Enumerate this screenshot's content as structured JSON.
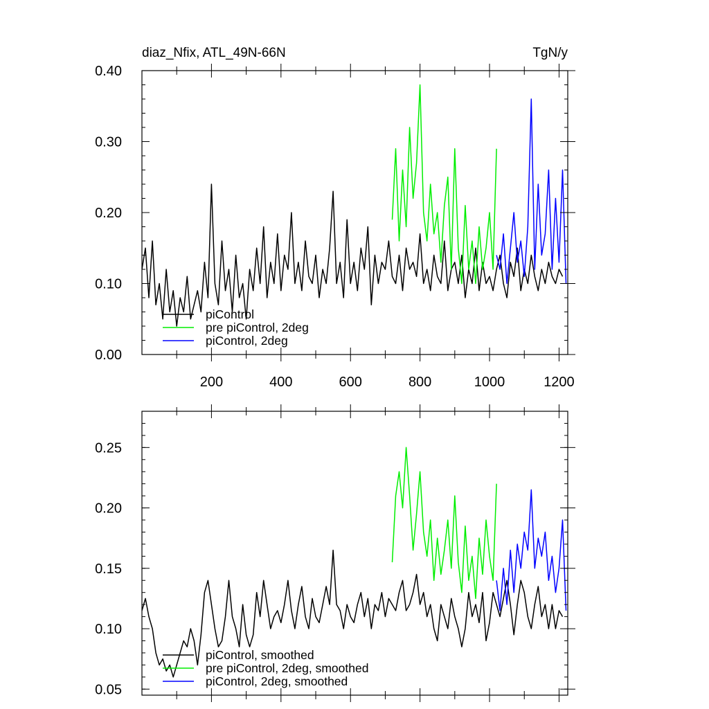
{
  "chart_data": [
    {
      "type": "line",
      "title_left": "diaz_Nfix, ATL_49N-66N",
      "title_right": "TgN/y",
      "xlim": [
        0,
        1225
      ],
      "ylim": [
        0,
        0.4
      ],
      "x_ticks": [
        200,
        400,
        600,
        800,
        1000,
        1200
      ],
      "x_tick_labels": [
        "200",
        "400",
        "600",
        "800",
        "1000",
        "1200"
      ],
      "y_ticks": [
        0,
        0.1,
        0.2,
        0.3,
        0.4
      ],
      "y_tick_labels": [
        "0.00",
        "0.10",
        "0.20",
        "0.30",
        "0.40"
      ],
      "legend_position": "bottom-left",
      "series": [
        {
          "name": "piControl",
          "color": "#000000",
          "x": [
            0,
            10,
            20,
            30,
            40,
            50,
            60,
            70,
            80,
            90,
            100,
            110,
            120,
            130,
            140,
            150,
            160,
            170,
            180,
            190,
            200,
            210,
            220,
            230,
            240,
            250,
            260,
            270,
            280,
            290,
            300,
            310,
            320,
            330,
            340,
            350,
            360,
            370,
            380,
            390,
            400,
            410,
            420,
            430,
            440,
            450,
            460,
            470,
            480,
            490,
            500,
            510,
            520,
            530,
            540,
            550,
            560,
            570,
            580,
            590,
            600,
            610,
            620,
            630,
            640,
            650,
            660,
            670,
            680,
            690,
            700,
            710,
            720,
            730,
            740,
            750,
            760,
            770,
            780,
            790,
            800,
            810,
            820,
            830,
            840,
            850,
            860,
            870,
            880,
            890,
            900,
            910,
            920,
            930,
            940,
            950,
            960,
            970,
            980,
            990,
            1000,
            1010,
            1020,
            1030,
            1040,
            1050,
            1060,
            1070,
            1080,
            1090,
            1100,
            1110,
            1120,
            1130,
            1140,
            1150,
            1160,
            1170,
            1180,
            1190,
            1200,
            1210
          ],
          "y": [
            0.12,
            0.15,
            0.08,
            0.16,
            0.07,
            0.1,
            0.05,
            0.12,
            0.06,
            0.09,
            0.04,
            0.08,
            0.06,
            0.11,
            0.05,
            0.07,
            0.09,
            0.06,
            0.13,
            0.08,
            0.24,
            0.1,
            0.07,
            0.16,
            0.09,
            0.12,
            0.06,
            0.14,
            0.08,
            0.1,
            0.05,
            0.12,
            0.09,
            0.15,
            0.1,
            0.18,
            0.08,
            0.13,
            0.1,
            0.17,
            0.09,
            0.14,
            0.12,
            0.2,
            0.1,
            0.13,
            0.09,
            0.16,
            0.11,
            0.1,
            0.14,
            0.08,
            0.12,
            0.1,
            0.15,
            0.23,
            0.1,
            0.13,
            0.08,
            0.19,
            0.1,
            0.13,
            0.09,
            0.15,
            0.12,
            0.18,
            0.07,
            0.14,
            0.1,
            0.13,
            0.12,
            0.16,
            0.11,
            0.1,
            0.14,
            0.09,
            0.15,
            0.12,
            0.13,
            0.11,
            0.17,
            0.1,
            0.12,
            0.09,
            0.14,
            0.11,
            0.1,
            0.16,
            0.09,
            0.12,
            0.13,
            0.1,
            0.14,
            0.08,
            0.12,
            0.1,
            0.15,
            0.09,
            0.13,
            0.1,
            0.11,
            0.09,
            0.12,
            0.14,
            0.1,
            0.08,
            0.13,
            0.11,
            0.15,
            0.09,
            0.12,
            0.1,
            0.14,
            0.11,
            0.09,
            0.12,
            0.1,
            0.13,
            0.11,
            0.1,
            0.12,
            0.11
          ]
        },
        {
          "name": "pre piControl, 2deg",
          "color": "#00ee00",
          "x": [
            720,
            730,
            740,
            750,
            760,
            770,
            780,
            790,
            800,
            810,
            820,
            830,
            840,
            850,
            860,
            870,
            880,
            890,
            900,
            910,
            920,
            930,
            940,
            950,
            960,
            970,
            980,
            990,
            1000,
            1010,
            1020
          ],
          "y": [
            0.19,
            0.29,
            0.16,
            0.26,
            0.18,
            0.32,
            0.22,
            0.27,
            0.38,
            0.2,
            0.16,
            0.24,
            0.17,
            0.2,
            0.13,
            0.21,
            0.25,
            0.12,
            0.29,
            0.15,
            0.1,
            0.21,
            0.12,
            0.16,
            0.1,
            0.18,
            0.12,
            0.15,
            0.2,
            0.12,
            0.29
          ]
        },
        {
          "name": "piControl, 2deg",
          "color": "#0000ff",
          "x": [
            1020,
            1030,
            1040,
            1050,
            1060,
            1070,
            1080,
            1090,
            1100,
            1110,
            1120,
            1130,
            1140,
            1150,
            1160,
            1170,
            1180,
            1190,
            1200,
            1210,
            1220
          ],
          "y": [
            0.14,
            0.12,
            0.17,
            0.1,
            0.15,
            0.2,
            0.13,
            0.16,
            0.11,
            0.18,
            0.36,
            0.12,
            0.24,
            0.14,
            0.17,
            0.26,
            0.12,
            0.22,
            0.13,
            0.26,
            0.1
          ]
        }
      ]
    },
    {
      "type": "line",
      "xlim": [
        0,
        1225
      ],
      "ylim": [
        0.045,
        0.28
      ],
      "y_ticks": [
        0.05,
        0.1,
        0.15,
        0.2,
        0.25
      ],
      "y_tick_labels": [
        "0.05",
        "0.10",
        "0.15",
        "0.20",
        "0.25"
      ],
      "legend_position": "bottom-left",
      "series": [
        {
          "name": "piControl, smoothed",
          "color": "#000000",
          "x": [
            0,
            10,
            20,
            30,
            40,
            50,
            60,
            70,
            80,
            90,
            100,
            110,
            120,
            130,
            140,
            150,
            160,
            170,
            180,
            190,
            200,
            210,
            220,
            230,
            240,
            250,
            260,
            270,
            280,
            290,
            300,
            310,
            320,
            330,
            340,
            350,
            360,
            370,
            380,
            390,
            400,
            410,
            420,
            430,
            440,
            450,
            460,
            470,
            480,
            490,
            500,
            510,
            520,
            530,
            540,
            550,
            560,
            570,
            580,
            590,
            600,
            610,
            620,
            630,
            640,
            650,
            660,
            670,
            680,
            690,
            700,
            710,
            720,
            730,
            740,
            750,
            760,
            770,
            780,
            790,
            800,
            810,
            820,
            830,
            840,
            850,
            860,
            870,
            880,
            890,
            900,
            910,
            920,
            930,
            940,
            950,
            960,
            970,
            980,
            990,
            1000,
            1010,
            1020,
            1030,
            1040,
            1050,
            1060,
            1070,
            1080,
            1090,
            1100,
            1110,
            1120,
            1130,
            1140,
            1150,
            1160,
            1170,
            1180,
            1190,
            1200,
            1210
          ],
          "y": [
            0.115,
            0.125,
            0.11,
            0.1,
            0.08,
            0.07,
            0.075,
            0.065,
            0.07,
            0.06,
            0.07,
            0.08,
            0.09,
            0.085,
            0.1,
            0.09,
            0.07,
            0.095,
            0.13,
            0.14,
            0.12,
            0.1,
            0.085,
            0.09,
            0.11,
            0.14,
            0.11,
            0.1,
            0.085,
            0.12,
            0.095,
            0.085,
            0.095,
            0.13,
            0.11,
            0.14,
            0.12,
            0.1,
            0.11,
            0.115,
            0.105,
            0.12,
            0.14,
            0.115,
            0.1,
            0.12,
            0.135,
            0.11,
            0.1,
            0.125,
            0.11,
            0.105,
            0.12,
            0.135,
            0.12,
            0.165,
            0.12,
            0.115,
            0.1,
            0.12,
            0.11,
            0.105,
            0.12,
            0.13,
            0.11,
            0.125,
            0.1,
            0.12,
            0.115,
            0.13,
            0.11,
            0.125,
            0.12,
            0.115,
            0.13,
            0.14,
            0.115,
            0.12,
            0.13,
            0.145,
            0.12,
            0.13,
            0.11,
            0.12,
            0.1,
            0.09,
            0.12,
            0.11,
            0.1,
            0.125,
            0.11,
            0.1,
            0.085,
            0.1,
            0.13,
            0.11,
            0.12,
            0.105,
            0.13,
            0.09,
            0.105,
            0.13,
            0.12,
            0.11,
            0.125,
            0.14,
            0.12,
            0.095,
            0.12,
            0.14,
            0.13,
            0.11,
            0.1,
            0.12,
            0.135,
            0.11,
            0.12,
            0.1,
            0.12,
            0.1,
            0.115,
            0.11
          ]
        },
        {
          "name": "pre piControl, 2deg, smoothed",
          "color": "#00ee00",
          "x": [
            720,
            730,
            740,
            750,
            760,
            770,
            780,
            790,
            800,
            810,
            820,
            830,
            840,
            850,
            860,
            870,
            880,
            890,
            900,
            910,
            920,
            930,
            940,
            950,
            960,
            970,
            980,
            990,
            1000,
            1010,
            1020
          ],
          "y": [
            0.155,
            0.21,
            0.23,
            0.2,
            0.25,
            0.21,
            0.165,
            0.195,
            0.23,
            0.18,
            0.16,
            0.19,
            0.14,
            0.175,
            0.145,
            0.165,
            0.19,
            0.15,
            0.21,
            0.155,
            0.13,
            0.185,
            0.14,
            0.16,
            0.125,
            0.175,
            0.145,
            0.19,
            0.16,
            0.14,
            0.22
          ]
        },
        {
          "name": "piControl, 2deg, smoothed",
          "color": "#0000ff",
          "x": [
            1020,
            1030,
            1040,
            1050,
            1060,
            1070,
            1080,
            1090,
            1100,
            1110,
            1120,
            1130,
            1140,
            1150,
            1160,
            1170,
            1180,
            1190,
            1200,
            1210,
            1220
          ],
          "y": [
            0.14,
            0.115,
            0.15,
            0.12,
            0.165,
            0.13,
            0.17,
            0.15,
            0.18,
            0.165,
            0.215,
            0.15,
            0.175,
            0.16,
            0.18,
            0.14,
            0.16,
            0.13,
            0.15,
            0.19,
            0.115
          ]
        }
      ]
    }
  ]
}
